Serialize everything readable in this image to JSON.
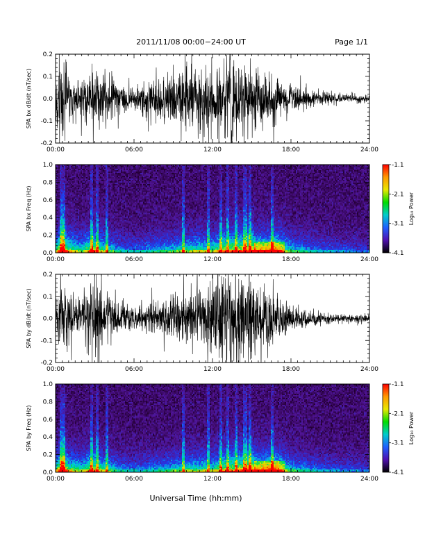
{
  "header": {
    "title": "2011/11/08  00:00−24:00 UT",
    "page": "Page 1/1"
  },
  "xlabel": "Universal Time (hh:mm)",
  "colorbar": {
    "label": "Log₁₀ Power",
    "ticks": [
      "-1.1",
      "-2.1",
      "-3.1",
      "-4.1"
    ],
    "colors": [
      "#ff0000",
      "#ff9900",
      "#e8e800",
      "#00dd00",
      "#00cccc",
      "#2060ff",
      "#5010b0",
      "#000000"
    ]
  },
  "chart_data": [
    {
      "type": "line",
      "ylabel": "SPA bx dB/dt (nT/sec)",
      "xlim": [
        0,
        24
      ],
      "ylim": [
        -0.2,
        0.2
      ],
      "xticks": [
        "00:00",
        "06:00",
        "12:00",
        "18:00",
        "24:00"
      ],
      "yticks": [
        "0.2",
        "0.1",
        "0.0",
        "-0.1",
        "-0.2"
      ],
      "envelope": {
        "hours": [
          0,
          0.3,
          0.6,
          1,
          1.5,
          2,
          2.5,
          2.8,
          3.2,
          3.6,
          4,
          4.5,
          5,
          6,
          7,
          8,
          9,
          9.5,
          10,
          10.5,
          11,
          11.5,
          12,
          12.5,
          13,
          13.5,
          14,
          14.5,
          15,
          15.5,
          16,
          16.5,
          17,
          17.5,
          18,
          19,
          20,
          21,
          22,
          23,
          24
        ],
        "amplitude": [
          0.12,
          0.22,
          0.22,
          0.12,
          0.09,
          0.1,
          0.16,
          0.22,
          0.2,
          0.14,
          0.12,
          0.09,
          0.07,
          0.06,
          0.09,
          0.11,
          0.13,
          0.13,
          0.18,
          0.17,
          0.14,
          0.14,
          0.15,
          0.2,
          0.2,
          0.22,
          0.2,
          0.19,
          0.18,
          0.14,
          0.13,
          0.14,
          0.11,
          0.08,
          0.07,
          0.05,
          0.04,
          0.03,
          0.025,
          0.02,
          0.02
        ]
      }
    },
    {
      "type": "heatmap",
      "ylabel": "SPA bx Freq (Hz)",
      "xlim": [
        0,
        24
      ],
      "ylim": [
        0,
        1.0
      ],
      "xticks": [
        "00:00",
        "06:00",
        "12:00",
        "18:00",
        "24:00"
      ],
      "yticks": [
        "1.0",
        "0.8",
        "0.6",
        "0.4",
        "0.2",
        "0.0"
      ],
      "zlim": [
        -4.1,
        -1.1
      ]
    },
    {
      "type": "line",
      "ylabel": "SPA by dB/dt (nT/sec)",
      "xlim": [
        0,
        24
      ],
      "ylim": [
        -0.2,
        0.2
      ],
      "xticks": [
        "00:00",
        "06:00",
        "12:00",
        "18:00",
        "24:00"
      ],
      "yticks": [
        "0.2",
        "0.1",
        "0.0",
        "-0.1",
        "-0.2"
      ],
      "envelope": {
        "hours": [
          0,
          0.3,
          0.6,
          1,
          1.5,
          2,
          2.5,
          2.8,
          3.2,
          3.6,
          4,
          4.5,
          5,
          6,
          7,
          8,
          9,
          9.5,
          10,
          10.5,
          11,
          11.5,
          12,
          12.5,
          13,
          13.5,
          14,
          14.5,
          15,
          15.5,
          16,
          16.5,
          17,
          17.5,
          18,
          19,
          20,
          21,
          22,
          23,
          24
        ],
        "amplitude": [
          0.12,
          0.22,
          0.22,
          0.12,
          0.09,
          0.1,
          0.16,
          0.22,
          0.22,
          0.14,
          0.12,
          0.09,
          0.07,
          0.06,
          0.08,
          0.1,
          0.12,
          0.13,
          0.16,
          0.15,
          0.14,
          0.16,
          0.2,
          0.22,
          0.22,
          0.22,
          0.22,
          0.22,
          0.22,
          0.15,
          0.13,
          0.14,
          0.1,
          0.08,
          0.06,
          0.05,
          0.04,
          0.03,
          0.025,
          0.02,
          0.02
        ]
      }
    },
    {
      "type": "heatmap",
      "ylabel": "SPA by Freq (Hz)",
      "xlim": [
        0,
        24
      ],
      "ylim": [
        0,
        1.0
      ],
      "xticks": [
        "00:00",
        "06:00",
        "12:00",
        "18:00",
        "24:00"
      ],
      "yticks": [
        "1.0",
        "0.8",
        "0.6",
        "0.4",
        "0.2",
        "0.0"
      ],
      "zlim": [
        -4.1,
        -1.1
      ]
    }
  ]
}
